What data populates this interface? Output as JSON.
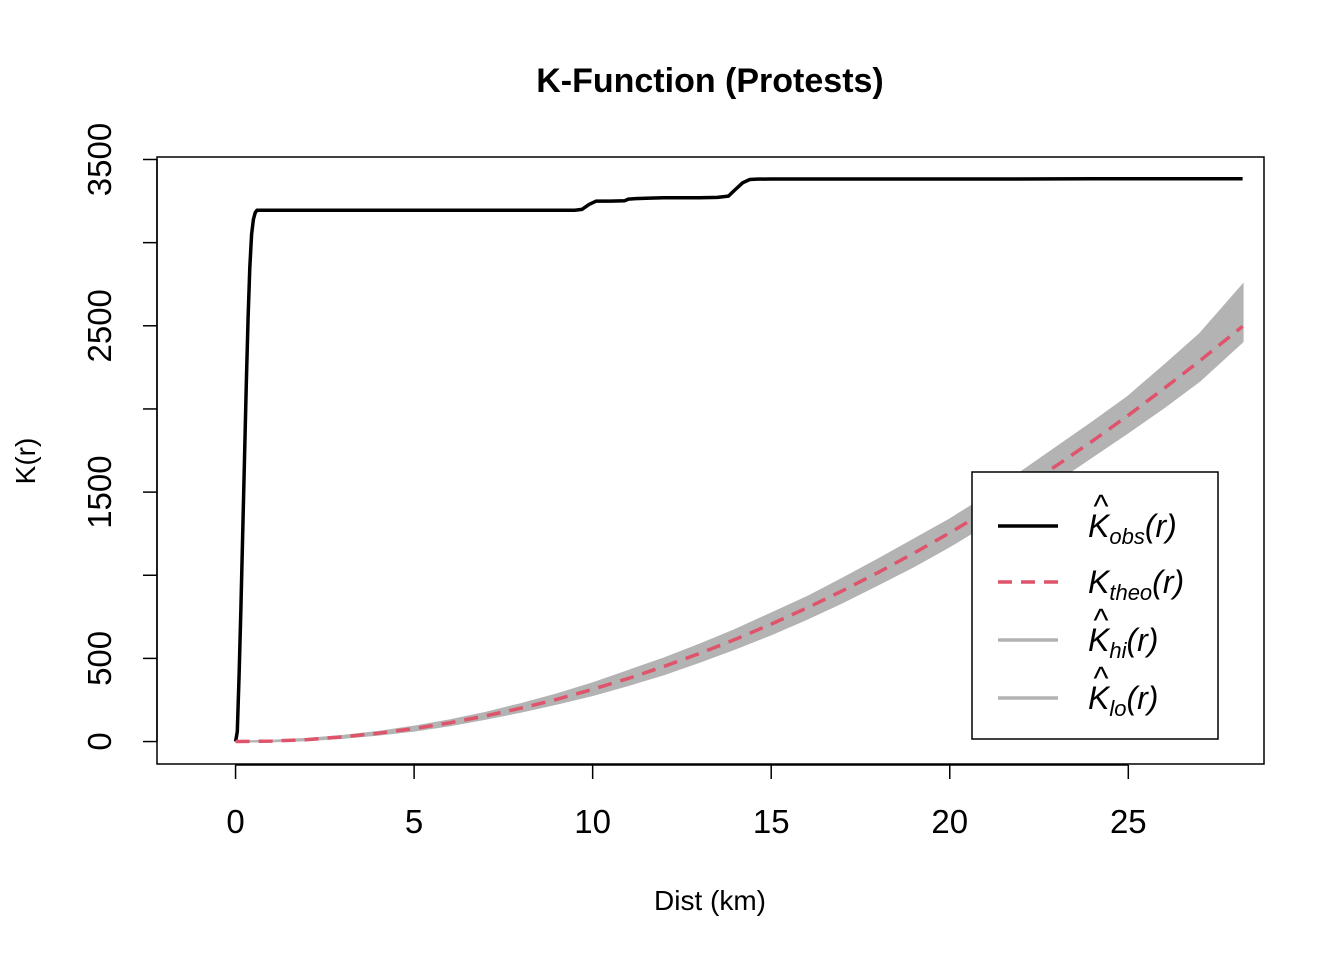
{
  "chart_data": {
    "type": "line",
    "title": "K-Function (Protests)",
    "xlabel": "Dist (km)",
    "ylabel": "K(r)",
    "xlim": [
      -2.2,
      28.8
    ],
    "ylim": [
      -135,
      3515
    ],
    "x_ticks": [
      0,
      5,
      10,
      15,
      20,
      25
    ],
    "x_tick_labels": [
      "0",
      "5",
      "10",
      "15",
      "20",
      "25"
    ],
    "y_ticks": [
      0,
      500,
      1000,
      1500,
      2000,
      2500,
      3000,
      3500
    ],
    "y_tick_labels": [
      "0",
      "500",
      "1500",
      "2500",
      "3500"
    ],
    "y_labeled_ticks": [
      0,
      500,
      1500,
      2500,
      3500
    ],
    "series": [
      {
        "name": "K_obs",
        "legend_main": "K",
        "legend_sub": "obs",
        "legend_hat": true,
        "color": "#000000",
        "style": "solid",
        "x": [
          0,
          0.05,
          0.1,
          0.15,
          0.2,
          0.25,
          0.3,
          0.35,
          0.4,
          0.45,
          0.5,
          0.55,
          0.6,
          0.65,
          0.7,
          0.8,
          1.0,
          3,
          6,
          9,
          9.5,
          9.7,
          9.9,
          10.1,
          10.5,
          10.9,
          11.0,
          11.2,
          11.6,
          12,
          13,
          13.5,
          13.8,
          14.0,
          14.2,
          14.4,
          14.6,
          15,
          18,
          21,
          24,
          28.2
        ],
        "y": [
          0,
          60,
          400,
          800,
          1250,
          1700,
          2150,
          2550,
          2850,
          3050,
          3140,
          3180,
          3195,
          3195,
          3195,
          3195,
          3195,
          3195,
          3195,
          3195,
          3195,
          3200,
          3230,
          3250,
          3250,
          3252,
          3262,
          3265,
          3268,
          3270,
          3270,
          3272,
          3280,
          3320,
          3360,
          3380,
          3382,
          3383,
          3383,
          3383,
          3384,
          3384
        ]
      },
      {
        "name": "K_theo",
        "legend_main": "K",
        "legend_sub": "theo",
        "legend_hat": false,
        "color": "#DF536B",
        "style": "dashed",
        "x": [
          0,
          1,
          2,
          3,
          4,
          5,
          6,
          7,
          8,
          9,
          10,
          11,
          12,
          13,
          14,
          15,
          16,
          17,
          18,
          19,
          20,
          21,
          22,
          23,
          24,
          25,
          26,
          27,
          28.2
        ],
        "y": [
          0,
          3,
          12,
          28,
          50,
          78,
          113,
          154,
          201,
          254,
          314,
          380,
          452,
          530,
          615,
          706,
          803,
          907,
          1017,
          1133,
          1255,
          1384,
          1519,
          1661,
          1808,
          1962,
          2123,
          2289,
          2497
        ]
      },
      {
        "name": "K_hi",
        "legend_main": "K",
        "legend_sub": "hi",
        "legend_hat": true,
        "color": "#b3b3b3",
        "style": "solid",
        "x": [
          0,
          1,
          2,
          3,
          4,
          5,
          6,
          7,
          8,
          9,
          10,
          11,
          12,
          13,
          14,
          15,
          16,
          17,
          18,
          19,
          20,
          21,
          22,
          23,
          24,
          25,
          26,
          27,
          28.2
        ],
        "y": [
          0,
          5,
          16,
          34,
          58,
          90,
          128,
          173,
          225,
          284,
          350,
          425,
          500,
          583,
          672,
          770,
          868,
          980,
          1095,
          1215,
          1335,
          1470,
          1620,
          1770,
          1920,
          2075,
          2260,
          2450,
          2745
        ]
      },
      {
        "name": "K_lo",
        "legend_main": "K",
        "legend_sub": "lo",
        "legend_hat": true,
        "color": "#b3b3b3",
        "style": "solid",
        "x": [
          0,
          1,
          2,
          3,
          4,
          5,
          6,
          7,
          8,
          9,
          10,
          11,
          12,
          13,
          14,
          15,
          16,
          17,
          18,
          19,
          20,
          21,
          22,
          23,
          24,
          25,
          26,
          27,
          28.2
        ],
        "y": [
          0,
          1,
          8,
          22,
          42,
          66,
          98,
          137,
          180,
          228,
          280,
          340,
          405,
          480,
          560,
          645,
          738,
          838,
          945,
          1055,
          1175,
          1305,
          1430,
          1570,
          1715,
          1860,
          2010,
          2170,
          2405
        ]
      }
    ],
    "envelope": {
      "between": [
        "K_lo",
        "K_hi"
      ],
      "color": "#b3b3b3"
    },
    "legend_position": "right"
  }
}
